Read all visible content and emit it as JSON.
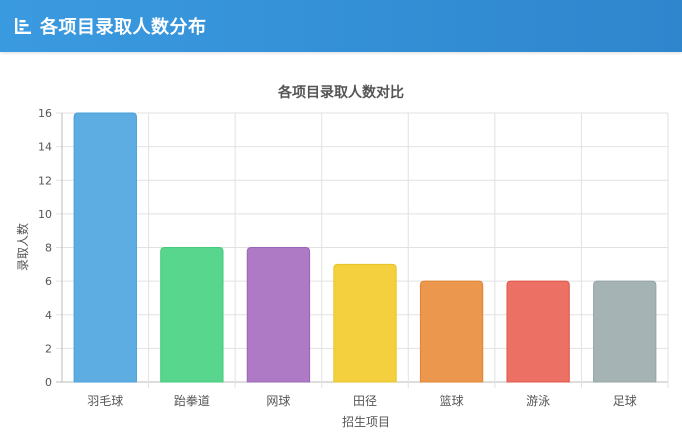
{
  "header": {
    "title": "各项目录取人数分布",
    "icon": "bar-chart-icon"
  },
  "chart_data": {
    "type": "bar",
    "title": "各项目录取人数对比",
    "xlabel": "招生项目",
    "ylabel": "录取人数",
    "ylim": [
      0,
      16
    ],
    "yticks": [
      0,
      2,
      4,
      6,
      8,
      10,
      12,
      14,
      16
    ],
    "grid": true,
    "categories": [
      "羽毛球",
      "跆拳道",
      "网球",
      "田径",
      "篮球",
      "游泳",
      "足球"
    ],
    "values": [
      16,
      8,
      8,
      7,
      6,
      6,
      6
    ],
    "colors": [
      "#5dade2",
      "#58d68d",
      "#af7ac5",
      "#f4d03f",
      "#eb984e",
      "#ec7063",
      "#a5b3b4"
    ],
    "borders": [
      "#4a9fd8",
      "#45c97c",
      "#9b65b3",
      "#e9c227",
      "#e08436",
      "#e0574a",
      "#95a5a6"
    ]
  }
}
